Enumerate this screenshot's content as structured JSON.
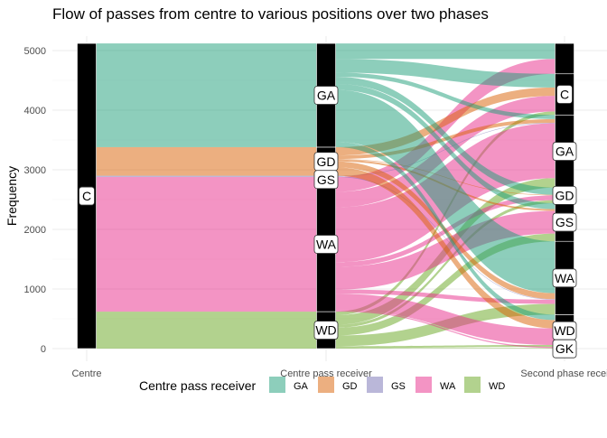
{
  "chart_data": {
    "type": "alluvial",
    "title": "Flow of passes from centre to various positions over two phases",
    "xlabel": "",
    "ylabel": "Frequency",
    "ylim": [
      0,
      5120
    ],
    "y_ticks": [
      0,
      1000,
      2000,
      3000,
      4000,
      5000
    ],
    "grid": true,
    "axes": [
      "Centre",
      "Centre pass receiver",
      "Second phase receiver"
    ],
    "axis_labels_visible": [
      "Centre",
      "Centre pass receiver",
      "Second phase recei"
    ],
    "legend": {
      "title": "Centre pass receiver",
      "placement": "bottom",
      "entries": [
        "GA",
        "GD",
        "GS",
        "WA",
        "WD"
      ],
      "colors": [
        "#1B9E77",
        "#D95F02",
        "#7570B3",
        "#E7298A",
        "#66A61E"
      ]
    },
    "strata": {
      "Centre": [
        {
          "label": "C",
          "value": 5120
        }
      ],
      "Centre pass receiver": [
        {
          "label": "WD",
          "value": 620
        },
        {
          "label": "WA",
          "value": 2260
        },
        {
          "label": "GS",
          "value": 20
        },
        {
          "label": "GD",
          "value": 480
        },
        {
          "label": "GA",
          "value": 1740
        }
      ],
      "Second phase receiver": [
        {
          "label": "GK",
          "value": 30
        },
        {
          "label": "WD",
          "value": 540
        },
        {
          "label": "WA",
          "value": 1230
        },
        {
          "label": "GS",
          "value": 640
        },
        {
          "label": "GD",
          "value": 260
        },
        {
          "label": "GA",
          "value": 1220
        },
        {
          "label": "C",
          "value": 690
        },
        {
          "label": "",
          "value": 510
        }
      ]
    },
    "flows": [
      {
        "from": "WD",
        "to": "GK",
        "value": 10
      },
      {
        "from": "WD",
        "to": "WD",
        "value": 30
      },
      {
        "from": "WD",
        "to": "WA",
        "value": 180
      },
      {
        "from": "WD",
        "to": "GS",
        "value": 130
      },
      {
        "from": "WD",
        "to": "GD",
        "value": 50
      },
      {
        "from": "WD",
        "to": "GA",
        "value": 160
      },
      {
        "from": "WD",
        "to": "C",
        "value": 60
      },
      {
        "from": "WA",
        "to": "GK",
        "value": 20
      },
      {
        "from": "WA",
        "to": "WD",
        "value": 280
      },
      {
        "from": "WA",
        "to": "WA",
        "value": 70
      },
      {
        "from": "WA",
        "to": "GS",
        "value": 380
      },
      {
        "from": "WA",
        "to": "GD",
        "value": 80
      },
      {
        "from": "WA",
        "to": "GA",
        "value": 920
      },
      {
        "from": "WA",
        "to": "C",
        "value": 260
      },
      {
        "from": "WA",
        "to": "",
        "value": 250
      },
      {
        "from": "GS",
        "to": "WA",
        "value": 10
      },
      {
        "from": "GS",
        "to": "GA",
        "value": 10
      },
      {
        "from": "GD",
        "to": "WD",
        "value": 140
      },
      {
        "from": "GD",
        "to": "WA",
        "value": 100
      },
      {
        "from": "GD",
        "to": "GS",
        "value": 30
      },
      {
        "from": "GD",
        "to": "GD",
        "value": 10
      },
      {
        "from": "GD",
        "to": "GA",
        "value": 60
      },
      {
        "from": "GD",
        "to": "C",
        "value": 140
      },
      {
        "from": "GA",
        "to": "WD",
        "value": 90
      },
      {
        "from": "GA",
        "to": "WA",
        "value": 870
      },
      {
        "from": "GA",
        "to": "GS",
        "value": 100
      },
      {
        "from": "GA",
        "to": "GD",
        "value": 120
      },
      {
        "from": "GA",
        "to": "GA",
        "value": 70
      },
      {
        "from": "GA",
        "to": "C",
        "value": 230
      },
      {
        "from": "GA",
        "to": "",
        "value": 260
      }
    ]
  }
}
